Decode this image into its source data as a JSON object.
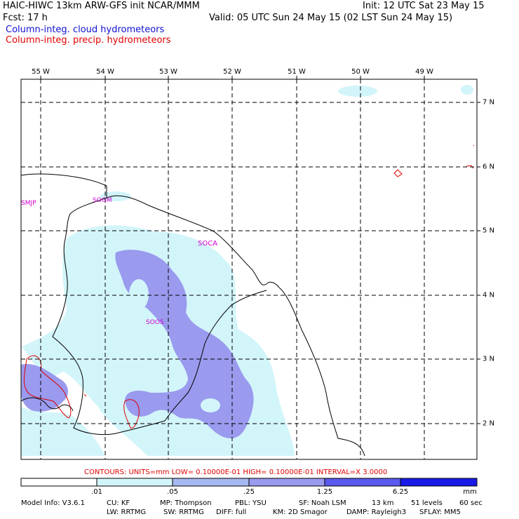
{
  "header": {
    "title": "HAIC-HIWC 13km ARW-GFS init   NCAR/MMM",
    "init": "Init: 12 UTC Sat 23 May 15",
    "fcst": "Fcst:   17 h",
    "valid": "Valid: 05 UTC Sun 24 May 15 (02 LST Sun 24 May 15)",
    "field1": "Column-integ. cloud hydrometeors",
    "field2": "Column-integ. precip. hydrometeors"
  },
  "colors": {
    "field1": "#1010d0",
    "field2": "#e00000",
    "fill_01_05": "#d2f5fa",
    "fill_05_25": "#a6b8f0",
    "fill_25_125": "#9a9aee",
    "fill_125_625": "#5a5aee",
    "fill_over_625": "#1a1ae8",
    "labels": "#d000d0"
  },
  "map": {
    "lon_labels": [
      "55 W",
      "54 W",
      "53 W",
      "52 W",
      "51 W",
      "50 W",
      "49 W"
    ],
    "lat_labels": [
      "7 N",
      "6 N",
      "5 N",
      "4 N",
      "3 N",
      "2 N"
    ],
    "stations": [
      "SMJP",
      "SOGM",
      "SOCA",
      "SOOS"
    ]
  },
  "contours": "CONTOURS:  UNITS=mm   LOW= 0.10000E-01   HIGH= 0.10000E-01   INTERVAL=X  3.0000",
  "scale": {
    "ticks": [
      ".01",
      ".05",
      ".25",
      "1.25",
      "6.25"
    ],
    "units": "mm"
  },
  "model_info": {
    "line1": [
      "Model Info: V3.6.1",
      "CU: KF",
      "MP: Thompson",
      "PBL: YSU",
      "SF: Noah LSM",
      "13 km",
      "51 levels",
      "60 sec"
    ],
    "line2": [
      "LW: RRTMG",
      "SW: RRTMG",
      "DIFF: full",
      "KM: 2D Smagor",
      "DAMP: Rayleigh3",
      "SFLAY: MM5"
    ]
  }
}
